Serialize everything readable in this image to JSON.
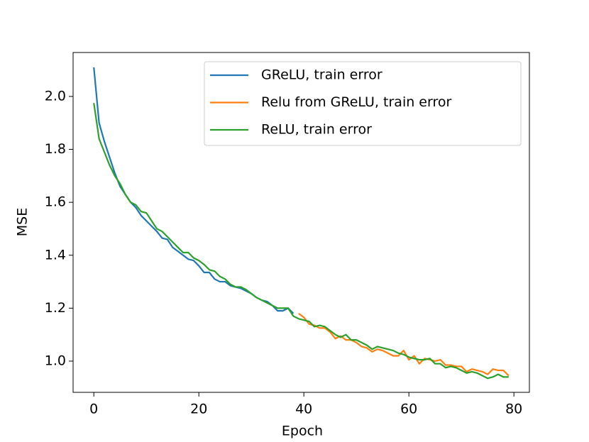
{
  "chart_data": {
    "type": "line",
    "xlabel": "Epoch",
    "ylabel": "MSE",
    "x": [
      0,
      1,
      2,
      3,
      4,
      5,
      6,
      7,
      8,
      9,
      10,
      11,
      12,
      13,
      14,
      15,
      16,
      17,
      18,
      19,
      20,
      21,
      22,
      23,
      24,
      25,
      26,
      27,
      28,
      29,
      30,
      31,
      32,
      33,
      34,
      35,
      36,
      37,
      38,
      39,
      40,
      41,
      42,
      43,
      44,
      45,
      46,
      47,
      48,
      49,
      50,
      51,
      52,
      53,
      54,
      55,
      56,
      57,
      58,
      59,
      60,
      61,
      62,
      63,
      64,
      65,
      66,
      67,
      68,
      69,
      70,
      71,
      72,
      73,
      74,
      75,
      76,
      77,
      78,
      79
    ],
    "series": [
      {
        "name": "GReLU, train error",
        "color": "#1f77b4",
        "values": [
          2.11,
          1.9,
          1.83,
          1.77,
          1.71,
          1.66,
          1.63,
          1.6,
          1.58,
          1.55,
          1.53,
          1.51,
          1.49,
          1.465,
          1.46,
          1.43,
          1.415,
          1.4,
          1.385,
          1.38,
          1.36,
          1.335,
          1.335,
          1.31,
          1.3,
          1.3,
          1.285,
          1.28,
          1.275,
          1.265,
          1.255,
          1.24,
          1.23,
          1.225,
          1.21,
          1.19,
          1.19,
          1.2,
          1.18,
          null,
          null,
          null,
          null,
          null,
          null,
          null,
          null,
          null,
          null,
          null,
          null,
          null,
          null,
          null,
          null,
          null,
          null,
          null,
          null,
          null,
          null,
          null,
          null,
          null,
          null,
          null,
          null,
          null,
          null,
          null,
          null,
          null,
          null,
          null,
          null,
          null,
          null,
          null,
          null,
          null
        ]
      },
      {
        "name": "Relu from GReLU, train error",
        "color": "#ff7f0e",
        "values": [
          null,
          null,
          null,
          null,
          null,
          null,
          null,
          null,
          null,
          null,
          null,
          null,
          null,
          null,
          null,
          null,
          null,
          null,
          null,
          null,
          null,
          null,
          null,
          null,
          null,
          null,
          null,
          null,
          null,
          null,
          null,
          null,
          null,
          null,
          null,
          null,
          null,
          null,
          null,
          1.18,
          1.165,
          1.14,
          1.135,
          1.125,
          1.125,
          1.11,
          1.085,
          1.095,
          1.08,
          1.08,
          1.07,
          1.055,
          1.05,
          1.035,
          1.045,
          1.04,
          1.03,
          1.02,
          1.02,
          1.04,
          1.005,
          1.02,
          0.99,
          1.01,
          1.005,
          1.0,
          1.005,
          0.985,
          0.985,
          0.98,
          0.98,
          0.96,
          0.97,
          0.965,
          0.96,
          0.95,
          0.97,
          0.965,
          0.965,
          0.945
        ]
      },
      {
        "name": "ReLU, train error",
        "color": "#2ca02c",
        "values": [
          1.975,
          1.84,
          1.79,
          1.74,
          1.7,
          1.67,
          1.63,
          1.6,
          1.59,
          1.565,
          1.56,
          1.53,
          1.5,
          1.49,
          1.47,
          1.45,
          1.43,
          1.41,
          1.41,
          1.39,
          1.38,
          1.365,
          1.345,
          1.34,
          1.32,
          1.31,
          1.29,
          1.28,
          1.28,
          1.27,
          1.255,
          1.24,
          1.23,
          1.22,
          1.21,
          1.2,
          1.2,
          1.2,
          1.17,
          1.16,
          1.155,
          1.15,
          1.13,
          1.135,
          1.13,
          1.115,
          1.1,
          1.09,
          1.1,
          1.08,
          1.08,
          1.07,
          1.06,
          1.045,
          1.055,
          1.05,
          1.045,
          1.04,
          1.03,
          1.025,
          1.015,
          1.01,
          1.005,
          1.005,
          1.01,
          0.99,
          0.99,
          0.975,
          0.98,
          0.975,
          0.965,
          0.955,
          0.96,
          0.955,
          0.945,
          0.935,
          0.94,
          0.95,
          0.94,
          0.94
        ]
      }
    ],
    "xlim": [
      -3.95,
      82.95
    ],
    "ylim": [
      0.882,
      2.166
    ],
    "xticks": [
      0,
      20,
      40,
      60,
      80
    ],
    "yticks": [
      {
        "value": 1,
        "label": "1.0"
      },
      1.2,
      1.4,
      1.6,
      1.8,
      {
        "value": 2,
        "label": "2.0"
      }
    ],
    "legend": "upper right",
    "grid": false
  }
}
